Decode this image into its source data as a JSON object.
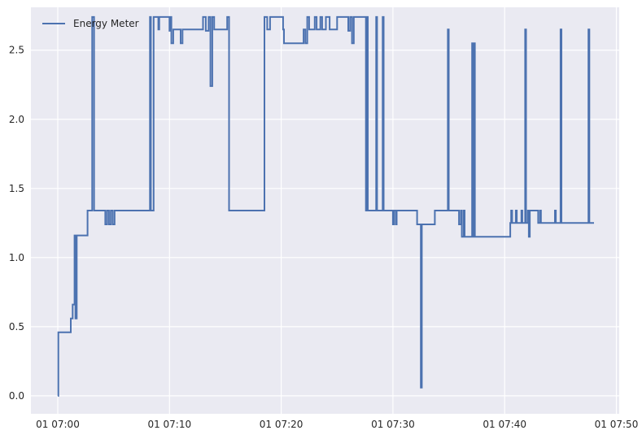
{
  "chart_data": {
    "type": "line",
    "title": "",
    "xlabel": "",
    "ylabel": "",
    "grid": true,
    "legend_position": "top-left",
    "colors": {
      "series": "#4c72b0",
      "plot_background": "#eaeaf2",
      "grid": "#ffffff"
    },
    "xlim": [
      "07:00",
      "07:50"
    ],
    "ylim": [
      -0.13,
      2.81
    ],
    "x_ticks": [
      {
        "value": "07:00",
        "label": "01 07:00"
      },
      {
        "value": "07:10",
        "label": "01 07:10"
      },
      {
        "value": "07:20",
        "label": "01 07:20"
      },
      {
        "value": "07:30",
        "label": "01 07:30"
      },
      {
        "value": "07:40",
        "label": "01 07:40"
      },
      {
        "value": "07:50",
        "label": "01 07:50"
      }
    ],
    "y_ticks": [
      {
        "value": 0.0,
        "label": "0.0"
      },
      {
        "value": 0.5,
        "label": "0.5"
      },
      {
        "value": 1.0,
        "label": "1.0"
      },
      {
        "value": 1.5,
        "label": "1.5"
      },
      {
        "value": 2.0,
        "label": "2.0"
      },
      {
        "value": 2.5,
        "label": "2.5"
      }
    ],
    "series": [
      {
        "name": "Energy Meter",
        "x": [
          "07:00:00",
          "07:00:03",
          "07:01:05",
          "07:01:10",
          "07:01:20",
          "07:01:30",
          "07:01:35",
          "07:01:42",
          "07:01:48",
          "07:02:00",
          "07:02:40",
          "07:03:05",
          "07:03:15",
          "07:03:20",
          "07:03:27",
          "07:03:30",
          "07:04:05",
          "07:04:15",
          "07:04:25",
          "07:04:35",
          "07:04:45",
          "07:04:55",
          "07:05:05",
          "07:05:20",
          "07:08:15",
          "07:08:20",
          "07:08:35",
          "07:08:40",
          "07:09:00",
          "07:09:05",
          "07:09:15",
          "07:10:00",
          "07:10:05",
          "07:10:10",
          "07:10:20",
          "07:10:25",
          "07:11:00",
          "07:11:10",
          "07:11:15",
          "07:11:45",
          "07:13:00",
          "07:13:15",
          "07:13:30",
          "07:13:40",
          "07:13:50",
          "07:14:00",
          "07:14:05",
          "07:14:15",
          "07:15:10",
          "07:15:20",
          "07:15:30",
          "07:18:30",
          "07:18:35",
          "07:18:45",
          "07:19:00",
          "07:19:05",
          "07:19:10",
          "07:20:10",
          "07:20:15",
          "07:20:25",
          "07:20:40",
          "07:21:00",
          "07:22:00",
          "07:22:10",
          "07:22:20",
          "07:22:30",
          "07:22:40",
          "07:22:45",
          "07:23:00",
          "07:23:10",
          "07:23:30",
          "07:23:40",
          "07:24:00",
          "07:24:10",
          "07:24:20",
          "07:25:00",
          "07:26:00",
          "07:26:10",
          "07:26:20",
          "07:26:30",
          "07:26:40",
          "07:27:00",
          "07:27:10",
          "07:27:15",
          "07:27:20",
          "07:27:30",
          "07:27:35",
          "07:27:40",
          "07:27:45",
          "07:28:25",
          "07:28:30",
          "07:28:35",
          "07:28:40",
          "07:29:05",
          "07:29:10",
          "07:29:15",
          "07:29:20",
          "07:29:50",
          "07:30:00",
          "07:30:05",
          "07:30:15",
          "07:30:20",
          "07:32:05",
          "07:32:10",
          "07:32:30",
          "07:32:35",
          "07:32:40",
          "07:33:40",
          "07:33:45",
          "07:34:50",
          "07:34:55",
          "07:35:00",
          "07:35:50",
          "07:35:55",
          "07:36:05",
          "07:36:10",
          "07:36:20",
          "07:36:25",
          "07:36:30",
          "07:37:00",
          "07:37:05",
          "07:37:10",
          "07:37:15",
          "07:37:20",
          "07:37:25",
          "07:37:30",
          "07:40:20",
          "07:40:30",
          "07:40:35",
          "07:40:40",
          "07:41:00",
          "07:41:05",
          "07:41:30",
          "07:41:35",
          "07:41:50",
          "07:41:55",
          "07:42:00",
          "07:42:05",
          "07:42:10",
          "07:42:15",
          "07:43:00",
          "07:43:05",
          "07:43:10",
          "07:43:15",
          "07:44:30",
          "07:44:35",
          "07:45:00",
          "07:45:05",
          "07:45:10",
          "07:45:15",
          "07:47:25",
          "07:47:30",
          "07:47:35",
          "07:47:40",
          "07:48:00"
        ],
        "y": [
          0.0,
          0.46,
          0.46,
          0.56,
          0.66,
          1.16,
          0.56,
          1.16,
          1.16,
          1.16,
          1.34,
          2.74,
          1.34,
          1.34,
          1.34,
          1.34,
          1.34,
          1.24,
          1.34,
          1.24,
          1.34,
          1.24,
          1.34,
          1.34,
          2.74,
          1.34,
          2.74,
          2.74,
          2.65,
          2.74,
          2.74,
          2.64,
          2.74,
          2.55,
          2.65,
          2.65,
          2.55,
          2.65,
          2.65,
          2.65,
          2.74,
          2.64,
          2.74,
          2.24,
          2.74,
          2.65,
          2.65,
          2.65,
          2.74,
          1.34,
          1.34,
          2.74,
          2.74,
          2.65,
          2.74,
          2.74,
          2.74,
          2.65,
          2.55,
          2.55,
          2.55,
          2.55,
          2.65,
          2.55,
          2.74,
          2.65,
          2.65,
          2.65,
          2.74,
          2.65,
          2.74,
          2.65,
          2.74,
          2.74,
          2.65,
          2.74,
          2.64,
          2.74,
          2.55,
          2.74,
          2.74,
          2.74,
          2.74,
          2.74,
          2.74,
          2.74,
          1.34,
          2.74,
          1.34,
          1.34,
          2.74,
          1.34,
          1.34,
          2.74,
          1.34,
          1.34,
          1.34,
          1.34,
          1.24,
          1.34,
          1.24,
          1.34,
          1.34,
          1.24,
          0.06,
          1.24,
          1.24,
          1.24,
          1.34,
          1.34,
          2.65,
          1.34,
          1.34,
          1.24,
          1.34,
          1.15,
          1.34,
          1.15,
          1.15,
          1.15,
          2.55,
          1.15,
          2.55,
          1.15,
          1.15,
          1.15,
          1.15,
          1.25,
          1.34,
          1.25,
          1.34,
          1.25,
          1.34,
          1.25,
          2.65,
          1.25,
          1.25,
          1.34,
          1.15,
          1.34,
          1.25,
          1.25,
          1.34,
          1.25,
          1.34,
          1.25,
          2.65,
          1.25,
          1.25,
          1.25,
          1.25,
          2.65,
          1.25,
          1.25,
          1.25
        ]
      }
    ]
  }
}
